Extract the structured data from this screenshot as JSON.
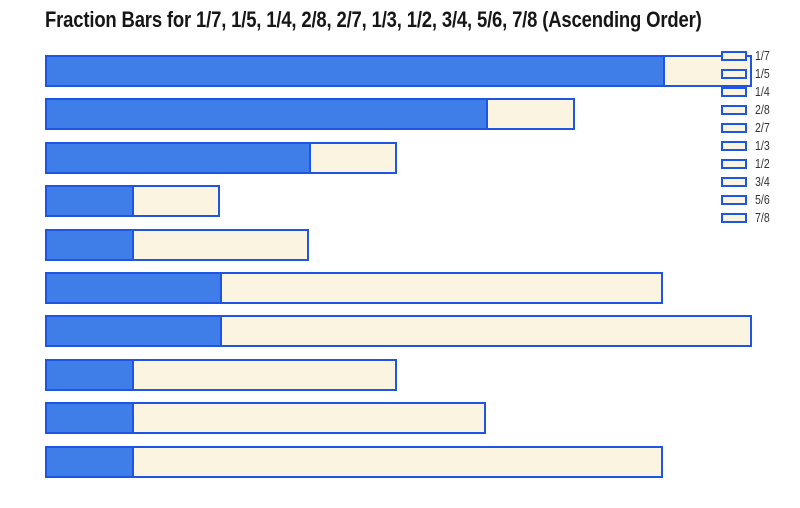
{
  "chart_data": {
    "type": "bar",
    "orientation": "horizontal",
    "title": "Fraction Bars for 1/7, 1/5, 1/4, 2/8, 2/7, 1/3, 1/2, 3/4, 5/6, 7/8 (Ascending Order)",
    "categories": [
      "1/7",
      "1/5",
      "1/4",
      "2/8",
      "2/7",
      "1/3",
      "1/2",
      "3/4",
      "5/6",
      "7/8"
    ],
    "values": [
      0.143,
      0.2,
      0.25,
      0.25,
      0.286,
      0.333,
      0.5,
      0.75,
      0.833,
      0.875
    ],
    "bars": [
      {
        "label": "1/7",
        "numerator": 1,
        "denominator": 7,
        "value": 0.143
      },
      {
        "label": "1/5",
        "numerator": 1,
        "denominator": 5,
        "value": 0.2
      },
      {
        "label": "1/4",
        "numerator": 1,
        "denominator": 4,
        "value": 0.25
      },
      {
        "label": "2/8",
        "numerator": 2,
        "denominator": 8,
        "value": 0.25
      },
      {
        "label": "2/7",
        "numerator": 2,
        "denominator": 7,
        "value": 0.286
      },
      {
        "label": "1/3",
        "numerator": 1,
        "denominator": 3,
        "value": 0.333
      },
      {
        "label": "1/2",
        "numerator": 1,
        "denominator": 2,
        "value": 0.5
      },
      {
        "label": "3/4",
        "numerator": 3,
        "denominator": 4,
        "value": 0.75
      },
      {
        "label": "5/6",
        "numerator": 5,
        "denominator": 6,
        "value": 0.833
      },
      {
        "label": "7/8",
        "numerator": 7,
        "denominator": 8,
        "value": 0.875
      }
    ],
    "display_order_top_to_bottom": [
      "7/8",
      "5/6",
      "3/4",
      "1/2",
      "1/3",
      "2/7",
      "2/8",
      "1/4",
      "1/5",
      "1/7"
    ],
    "bar_style": "each bar total width proportional to denominator; filled segment proportional to numerator; remainder segment in cream with blue outline",
    "legend": {
      "position": "right",
      "labels": [
        "1/7",
        "1/5",
        "1/4",
        "2/8",
        "2/7",
        "1/3",
        "1/2",
        "3/4",
        "5/6",
        "7/8"
      ]
    },
    "xlabel": "",
    "ylabel": "",
    "grid": false,
    "colors": {
      "filled": "#3F7DE8",
      "outline": "#1E55E4",
      "remainder": "#FBF4E0",
      "title_text": "#161616",
      "legend_text": "#333333",
      "background": "#FFFFFF"
    }
  }
}
